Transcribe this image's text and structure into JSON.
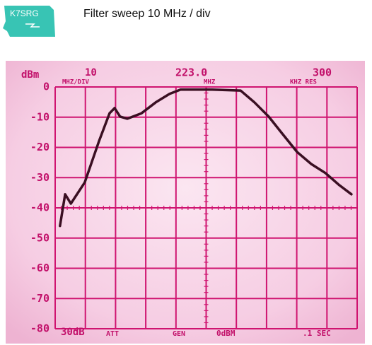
{
  "header": {
    "logo": "K7SRG",
    "title": "Filter sweep 10 MHz / div"
  },
  "chart_data": {
    "type": "line",
    "y_label": "dBm",
    "annotations": [
      "10",
      "MHZ/DIV",
      "223.0",
      "MHZ",
      "300",
      "KHZ RES",
      "30dB",
      "ATT",
      "GEN",
      "0dBM",
      ".1 SEC"
    ],
    "x": [
      174.6,
      176.3,
      178.2,
      182.8,
      187.5,
      191.0,
      192.7,
      194.5,
      196.9,
      201.6,
      206.3,
      210.9,
      214.5,
      225.0,
      234.4,
      239.0,
      243.7,
      248.4,
      253.1,
      257.8,
      262.5,
      267.1,
      271.1
    ],
    "values": [
      -46,
      -35.5,
      -38.6,
      -31.6,
      -18,
      -8.7,
      -7,
      -9.8,
      -10.5,
      -8.7,
      -5.1,
      -2.3,
      -0.9,
      -0.9,
      -1.2,
      -5.1,
      -9.8,
      -15.7,
      -21.5,
      -25.5,
      -28.5,
      -32.5,
      -35.5
    ],
    "color": "#3a0f22",
    "xlim": [
      173,
      273
    ],
    "xticks": [
      173,
      183,
      193,
      203,
      213,
      223,
      233,
      243,
      253,
      263,
      273
    ],
    "ylim": [
      -80,
      0
    ],
    "yticks": [
      0,
      -10,
      -20,
      -30,
      -40,
      -50,
      -60,
      -70,
      -80
    ],
    "grid": true
  }
}
